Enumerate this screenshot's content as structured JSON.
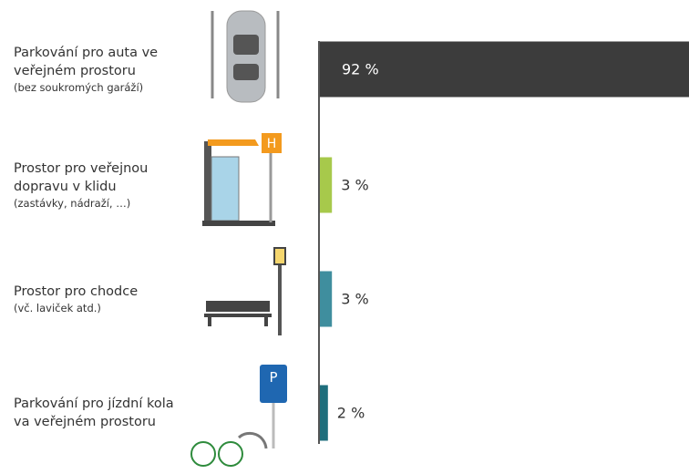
{
  "chart_data": {
    "type": "bar",
    "categories": [
      "Parkování pro auta ve veřejném prostoru",
      "Prostor pro veřejnou dopravu v klidu",
      "Prostor pro chodce",
      "Parkování pro jízdní kola va veřejném prostoru"
    ],
    "notes": [
      "(bez soukromých garáží)",
      "(zastávky, nádraží, …)",
      "(vč. laviček atd.)",
      null
    ],
    "values": [
      92,
      3,
      3,
      2
    ],
    "value_labels": [
      "92 %",
      "3 %",
      "3 %",
      "2 %"
    ],
    "colors": [
      "#3c3c3c",
      "#a7c94b",
      "#3f8e9e",
      "#1e6e7c"
    ]
  }
}
